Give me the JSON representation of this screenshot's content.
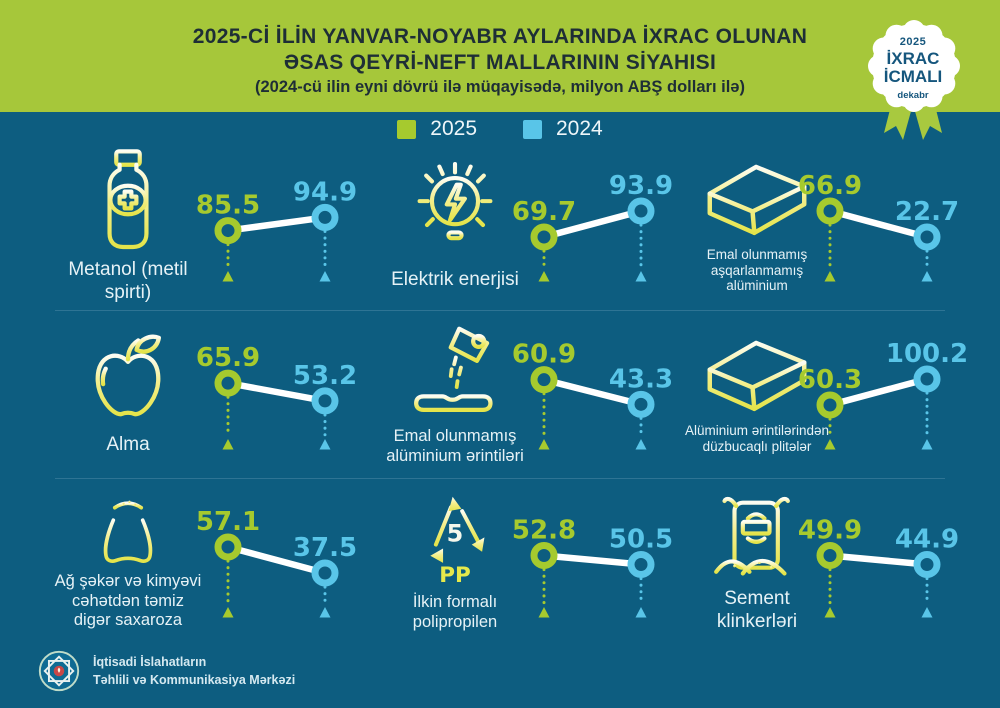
{
  "header": {
    "title_line1": "2025-Cİ İLİN YANVAR-NOYABR AYLARINDA İXRAC OLUNAN",
    "title_line2": "ƏSAS QEYRİ-NEFT MALLARININ SİYAHISI",
    "subtitle": "(2024-cü ilin eyni dövrü ilə müqayisədə, milyon ABŞ dolları ilə)"
  },
  "badge": {
    "year": "2025",
    "line1": "İXRAC",
    "line2": "İCMALI",
    "month": "dekabr"
  },
  "legend": [
    {
      "label": "2025",
      "color": "#a6ca2e"
    },
    {
      "label": "2024",
      "color": "#59c5e8"
    }
  ],
  "colors": {
    "background": "#0d5d80",
    "header_green": "#a6c73a",
    "green": "#a6ca2e",
    "cyan": "#59c5e8",
    "line": "#ffffff",
    "divider": "#2e7494",
    "title_text": "#1e2e36",
    "badge_text": "#15567d"
  },
  "items": [
    {
      "label": "Metanol (metil spirti)",
      "icon": "medicine-bottle",
      "v2025": 85.5,
      "v2024": 94.9
    },
    {
      "label": "Elektrik enerjisi",
      "icon": "light-bulb",
      "v2025": 69.7,
      "v2024": 93.9
    },
    {
      "label": "Emal olunmamış aşqarlanmamış alüminium",
      "icon": "aluminium-ingot",
      "v2025": 66.9,
      "v2024": 22.7
    },
    {
      "label": "Alma",
      "icon": "apple",
      "v2025": 65.9,
      "v2024": 53.2
    },
    {
      "label": "Emal olunmamış alüminium ərintiləri",
      "icon": "molten-metal-pour",
      "v2025": 60.9,
      "v2024": 43.3
    },
    {
      "label": "Alüminium ərintilərindən düzbucaqlı plitələr",
      "icon": "aluminium-ingot",
      "v2025": 60.3,
      "v2024": 100.2
    },
    {
      "label": "Ağ şəkər və kimyəvi cəhətdən təmiz digər saxaroza",
      "icon": "sugar-sack",
      "v2025": 57.1,
      "v2024": 37.5
    },
    {
      "label": "İlkin formalı polipropilen",
      "icon": "pp-recycling",
      "v2025": 52.8,
      "v2024": 50.5
    },
    {
      "label": "Sement klinkerləri",
      "icon": "cement-bag",
      "v2025": 49.9,
      "v2024": 44.9
    }
  ],
  "chart_data": {
    "type": "line",
    "title": "2025-Cİ İLİN YANVAR-NOYABR AYLARINDA İXRAC OLUNAN ƏSAS QEYRİ-NEFT MALLARININ SİYAHISI",
    "subtitle": "(2024-cü ilin eyni dövrü ilə müqayisədə, milyon ABŞ dolları ilə)",
    "unit": "milyon ABŞ dolları",
    "legend_position": "top",
    "grid": false,
    "categories": [
      "Metanol (metil spirti)",
      "Elektrik enerjisi",
      "Emal olunmamış aşqarlanmamış alüminium",
      "Alma",
      "Emal olunmamış alüminium ərintiləri",
      "Alüminium ərintilərindən düzbucaqlı plitələr",
      "Ağ şəkər və kimyəvi cəhətdən təmiz digər saxaroza",
      "İlkin formalı polipropilen",
      "Sement klinkerləri"
    ],
    "series": [
      {
        "name": "2025",
        "color": "#a6ca2e",
        "values": [
          85.5,
          69.7,
          66.9,
          65.9,
          60.9,
          60.3,
          57.1,
          52.8,
          49.9
        ]
      },
      {
        "name": "2024",
        "color": "#59c5e8",
        "values": [
          94.9,
          93.9,
          22.7,
          53.2,
          43.3,
          100.2,
          37.5,
          50.5,
          44.9
        ]
      }
    ]
  },
  "footer": {
    "org_line1": "İqtisadi İslahatların",
    "org_line2": "Təhlili və Kommunikasiya Mərkəzi"
  }
}
